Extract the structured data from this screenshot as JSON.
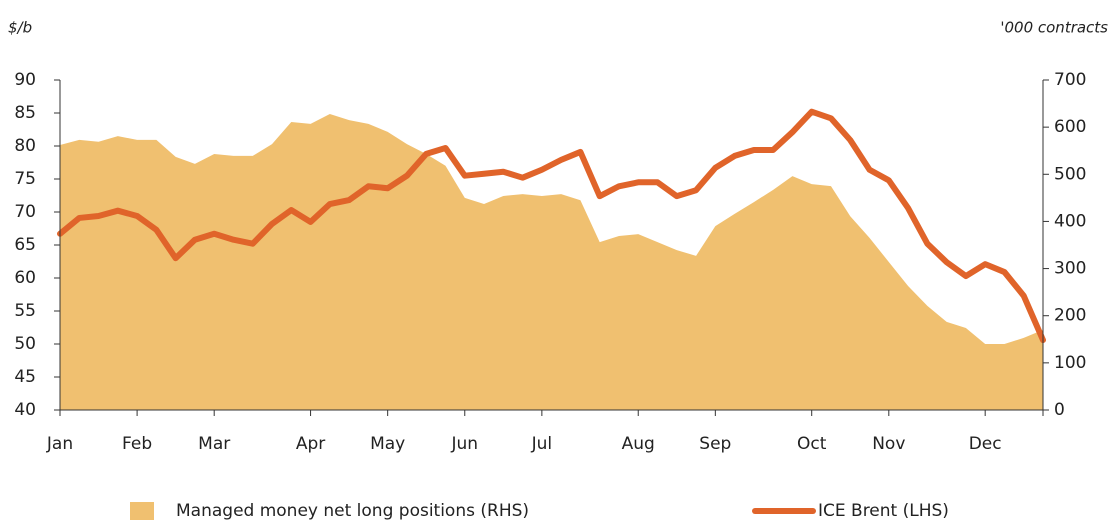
{
  "chart_data": {
    "type": "line-area",
    "ylabel": "$/b",
    "y2label": "'000 contracts",
    "categories": [
      "Jan",
      null,
      null,
      null,
      "Feb",
      null,
      null,
      null,
      "Mar",
      null,
      null,
      null,
      null,
      "Apr",
      null,
      null,
      null,
      "May",
      null,
      null,
      null,
      "Jun",
      null,
      null,
      null,
      "Jul",
      null,
      null,
      null,
      null,
      "Aug",
      null,
      null,
      null,
      "Sep",
      null,
      null,
      null,
      null,
      "Oct",
      null,
      null,
      null,
      "Nov",
      null,
      null,
      null,
      null,
      "Dec",
      null,
      null,
      null
    ],
    "series": [
      {
        "name": "Managed money net long positions (RHS)",
        "kind": "area",
        "axis": "y2",
        "color": "#f0c070",
        "values": [
          562,
          573,
          569,
          581,
          573,
          573,
          537,
          522,
          543,
          539,
          539,
          564,
          611,
          607,
          628,
          615,
          607,
          590,
          564,
          543,
          518,
          450,
          437,
          454,
          458,
          454,
          458,
          445,
          356,
          369,
          373,
          356,
          339,
          327,
          390,
          416,
          441,
          467,
          496,
          479,
          475,
          411,
          365,
          314,
          263,
          221,
          187,
          174,
          140,
          140,
          153,
          170
        ]
      },
      {
        "name": "ICE Brent (LHS)",
        "kind": "line",
        "axis": "y",
        "color": "#e0642a",
        "values": [
          66.7,
          69.1,
          69.4,
          70.2,
          69.4,
          67.3,
          63.0,
          65.8,
          66.7,
          65.8,
          65.2,
          68.2,
          70.3,
          68.5,
          71.2,
          71.8,
          73.9,
          73.6,
          75.5,
          78.8,
          79.7,
          75.5,
          75.8,
          76.1,
          75.2,
          76.4,
          77.9,
          79.1,
          72.4,
          73.9,
          74.5,
          74.5,
          72.4,
          73.3,
          76.7,
          78.5,
          79.4,
          79.4,
          82.1,
          85.2,
          84.2,
          80.9,
          76.4,
          74.8,
          70.6,
          65.2,
          62.4,
          60.3,
          62.1,
          60.9,
          57.3,
          50.6
        ]
      }
    ],
    "ylim": [
      40,
      90
    ],
    "yticks": [
      40,
      45,
      50,
      55,
      60,
      65,
      70,
      75,
      80,
      85,
      90
    ],
    "y2lim": [
      0,
      700
    ],
    "y2ticks": [
      0,
      100,
      200,
      300,
      400,
      500,
      600,
      700
    ]
  }
}
